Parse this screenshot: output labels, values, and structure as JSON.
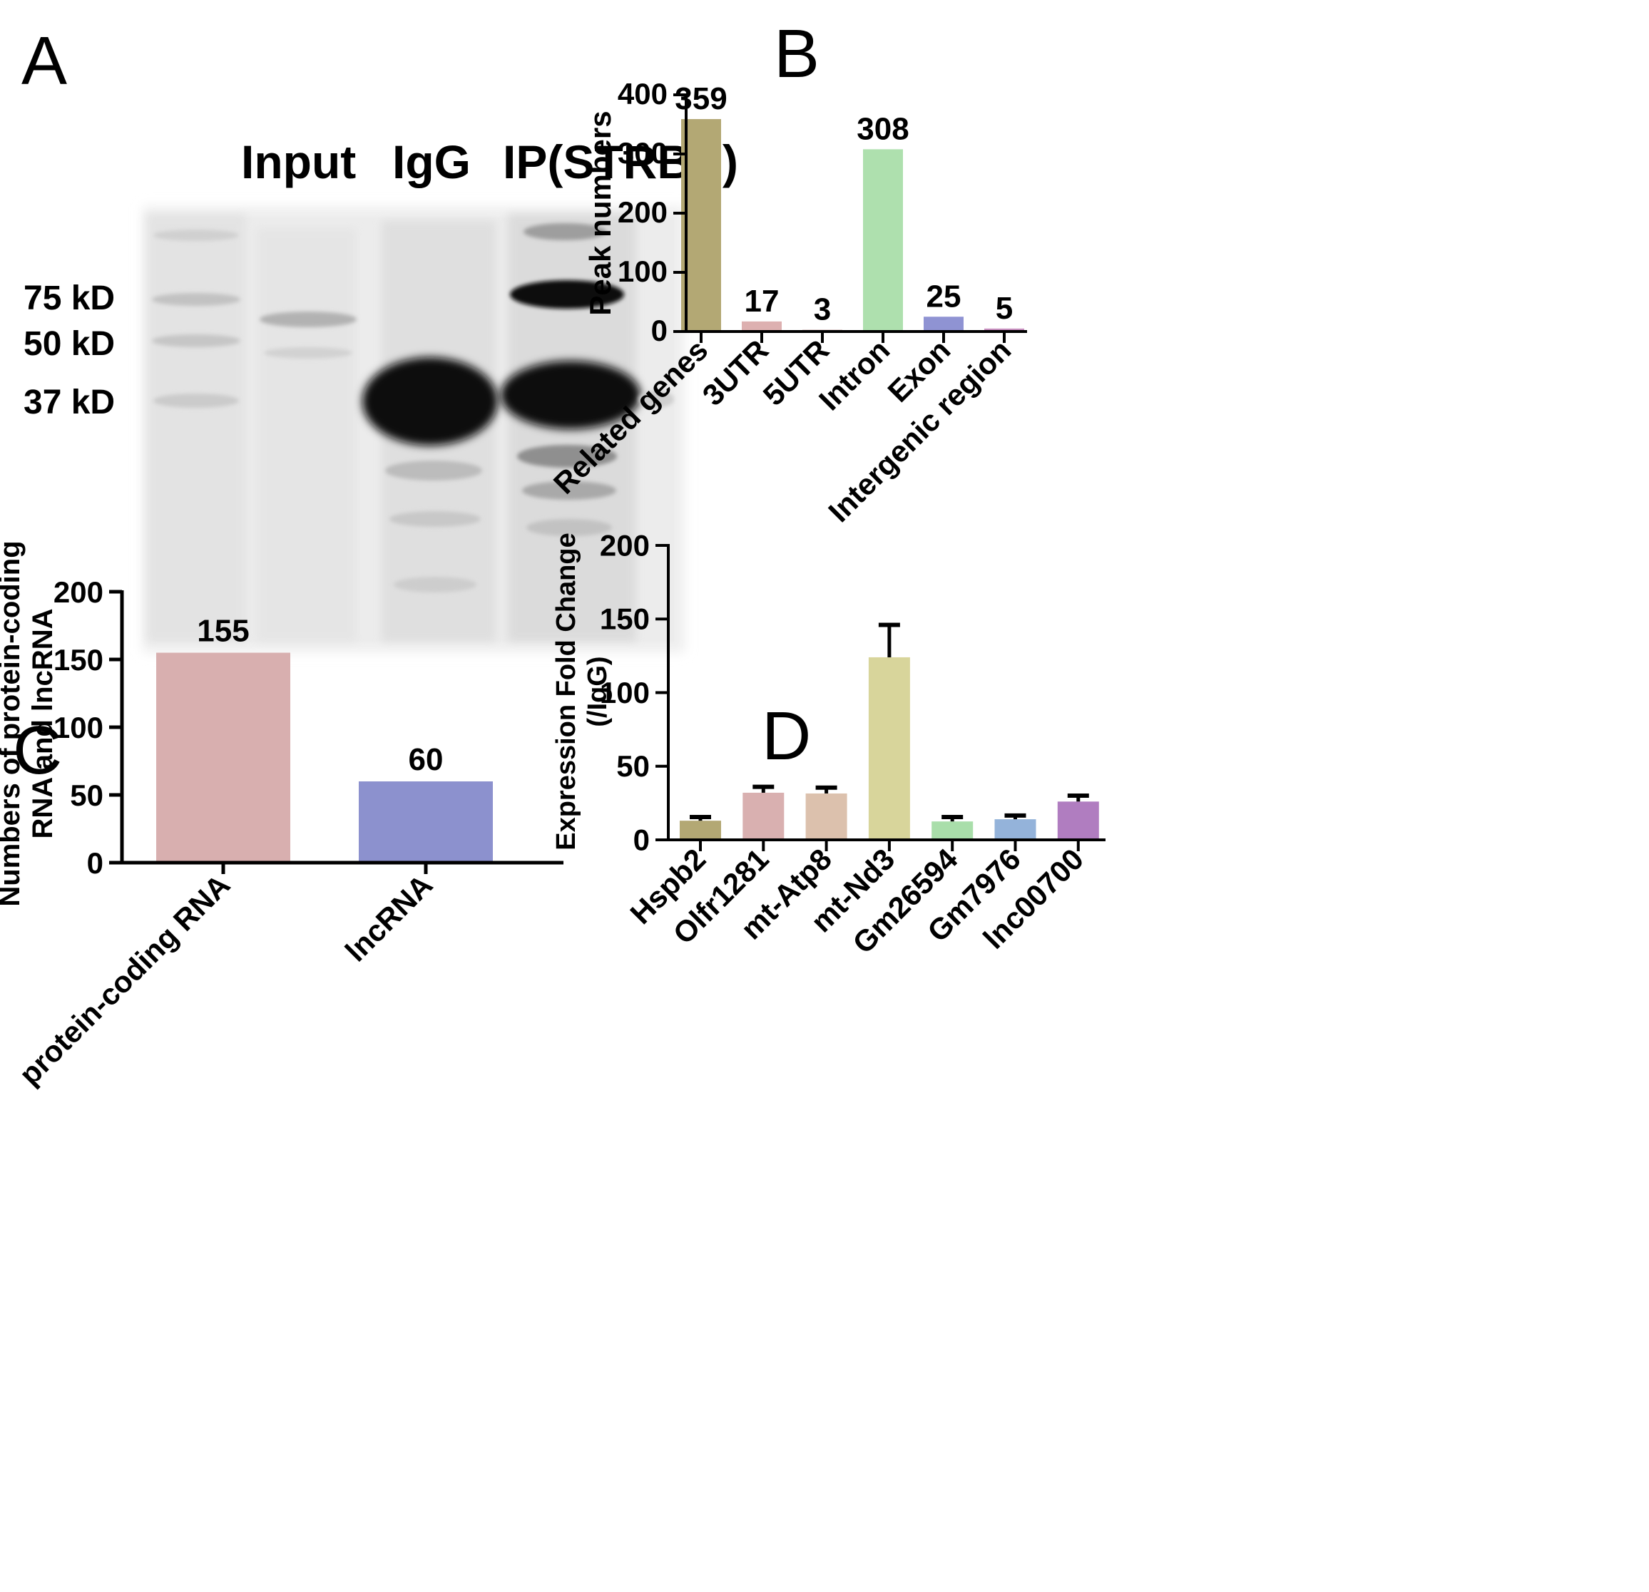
{
  "panels": {
    "a": "A",
    "b": "B",
    "c": "C",
    "d": "D"
  },
  "blot": {
    "lanes": [
      "Input",
      "IgG",
      "IP(STRBP)"
    ],
    "markers": [
      "75 kD",
      "50 kD",
      "37 kD"
    ]
  },
  "chart_data": [
    {
      "panel": "B",
      "type": "bar",
      "categories": [
        "Related genes",
        "3UTR",
        "5UTR",
        "Intron",
        "Exon",
        "Intergenic region"
      ],
      "values": [
        359,
        17,
        3,
        308,
        25,
        5
      ],
      "data_labels": [
        "359",
        "17",
        "3",
        "308",
        "25",
        "5"
      ],
      "colors": [
        "#b3a874",
        "#ddb0b0",
        "#d6b5b5",
        "#aee0ae",
        "#8f93d3",
        "#c98fc0"
      ],
      "xlabel": "",
      "ylabel": "Peak numbers",
      "ylim": [
        0,
        400
      ],
      "yticks": [
        0,
        100,
        200,
        300,
        400
      ],
      "title": ""
    },
    {
      "panel": "C",
      "type": "bar",
      "categories": [
        "protein-coding RNA",
        "lncRNA"
      ],
      "values": [
        155,
        60
      ],
      "data_labels": [
        "155",
        "60"
      ],
      "colors": [
        "#d8afaf",
        "#8c91ce"
      ],
      "xlabel": "",
      "ylabel": [
        "Numbers of protein-coding",
        "RNA and lncRNA"
      ],
      "ylim": [
        0,
        200
      ],
      "yticks": [
        0,
        50,
        100,
        150,
        200
      ],
      "title": ""
    },
    {
      "panel": "D",
      "type": "bar",
      "categories": [
        "Hspb2",
        "Olfr1281",
        "mt-Atp8",
        "mt-Nd3",
        "Gm26594",
        "Gm7976",
        "lnc00700"
      ],
      "values": [
        13,
        32,
        31.5,
        124,
        12.5,
        14,
        26
      ],
      "errors": [
        2.5,
        4,
        4,
        22,
        3,
        2.5,
        4
      ],
      "colors": [
        "#b3a874",
        "#d9b0b0",
        "#dcc1ad",
        "#d8d59b",
        "#a9deaa",
        "#94b3da",
        "#b07dc0"
      ],
      "xlabel": "",
      "ylabel": [
        "Expression Fold Change",
        "(/IgG)"
      ],
      "ylim": [
        0,
        200
      ],
      "yticks": [
        0,
        50,
        100,
        150,
        200
      ],
      "title": ""
    }
  ]
}
